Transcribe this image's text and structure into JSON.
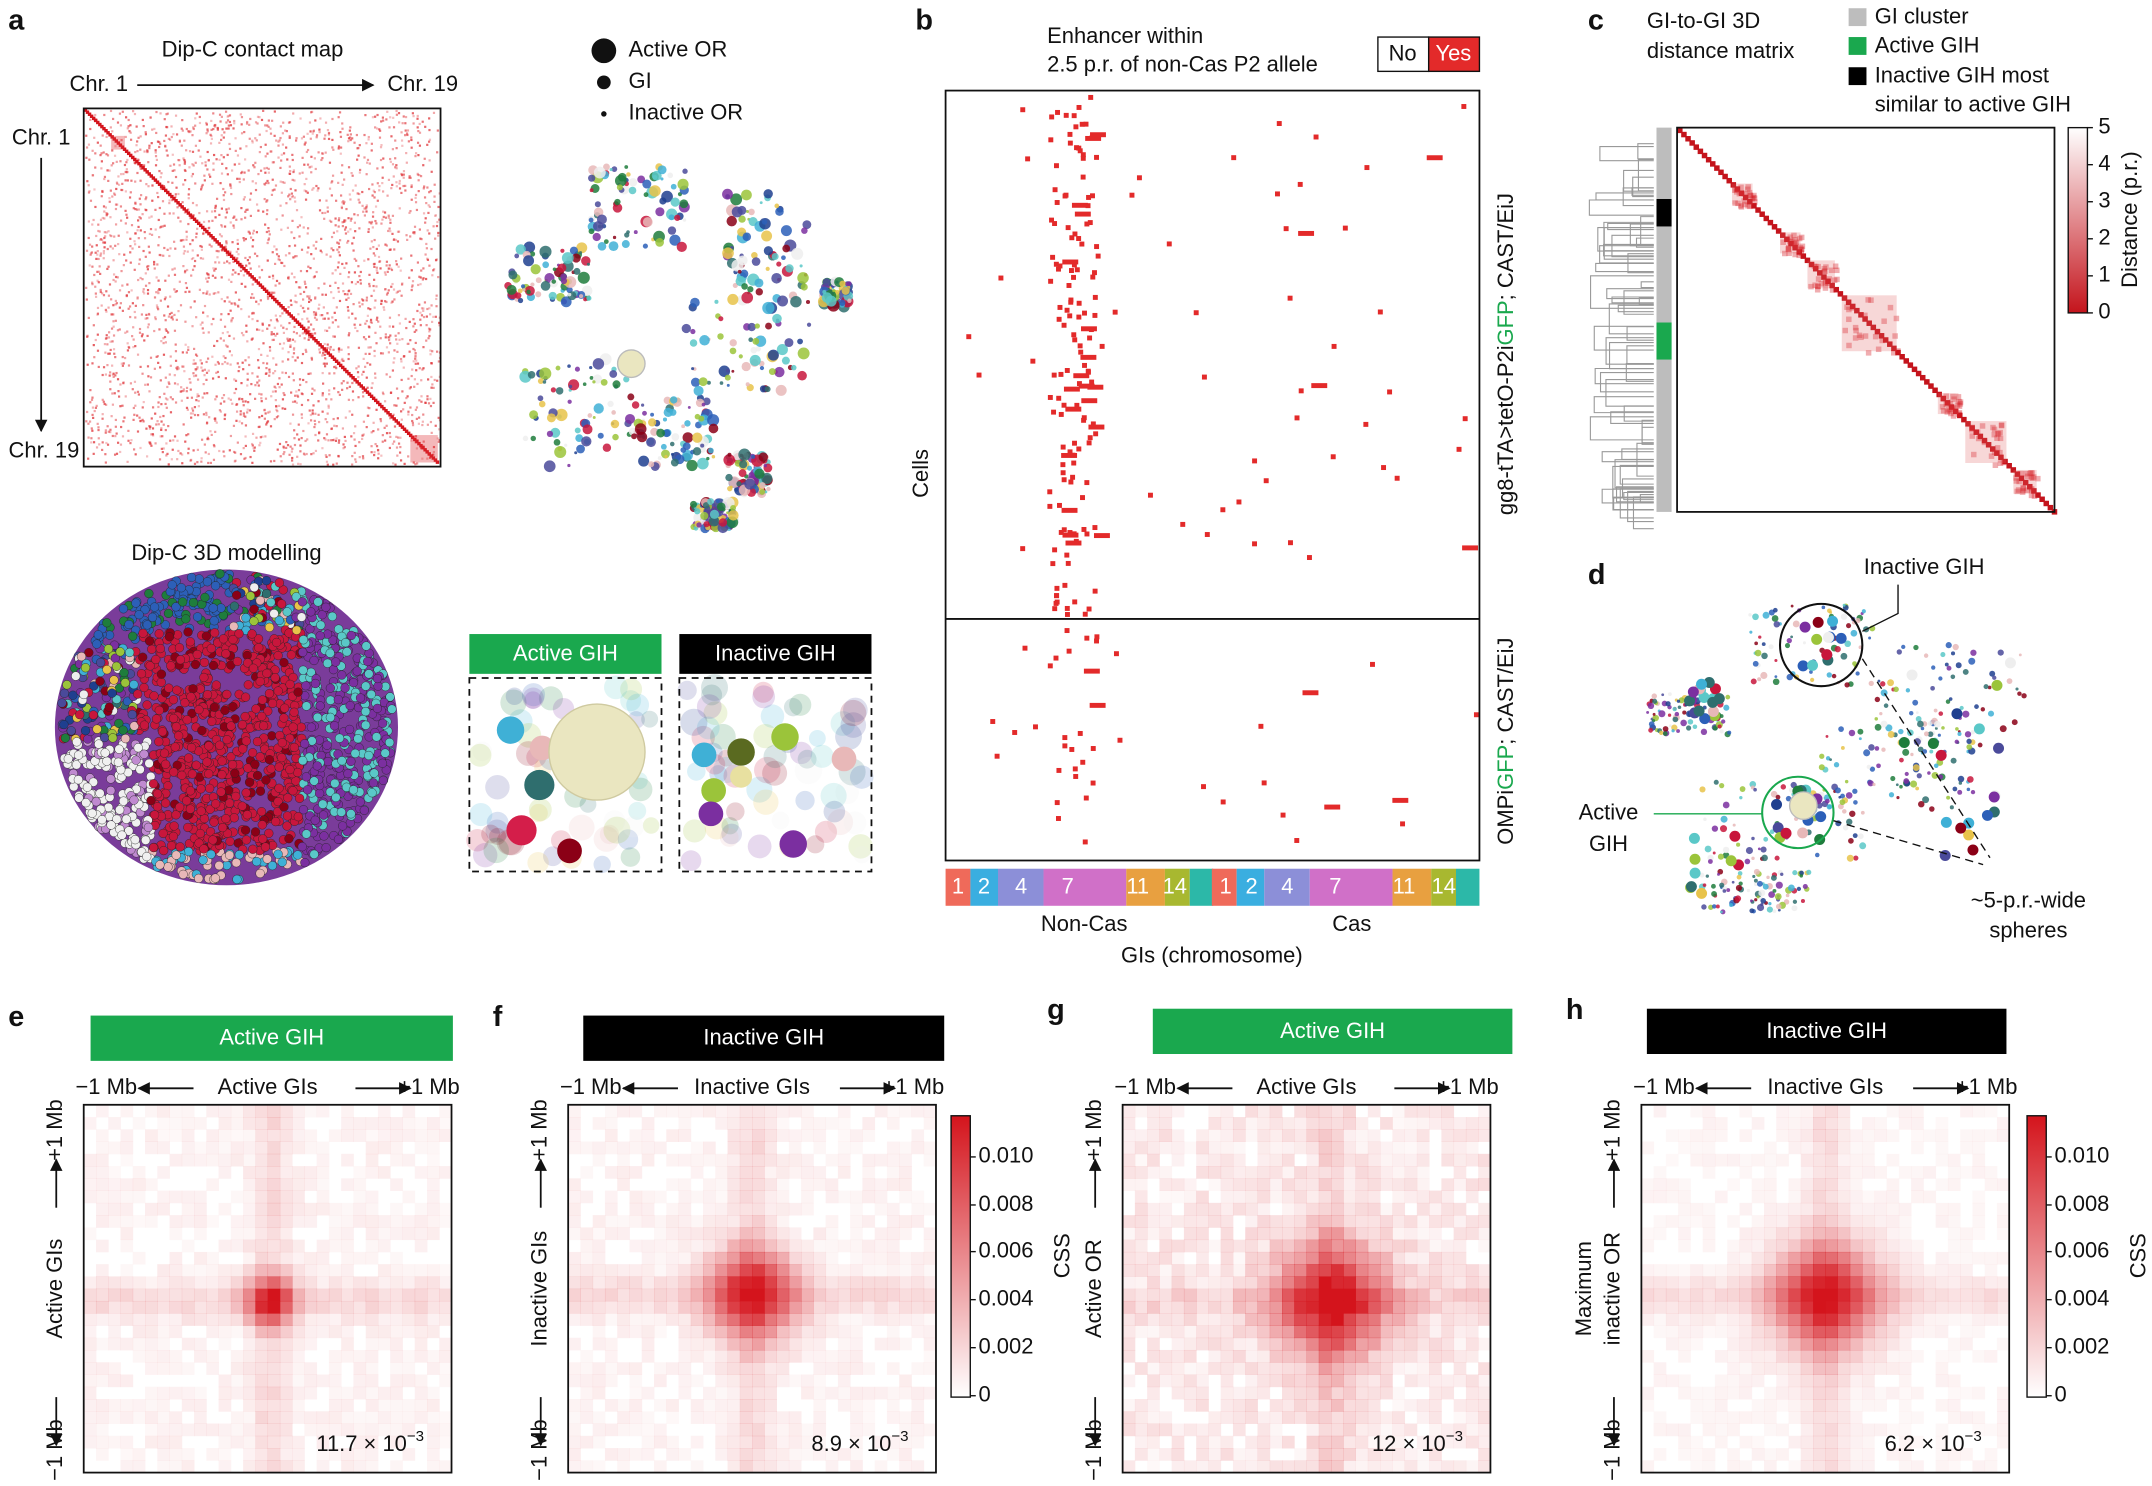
{
  "panel_a": {
    "letter": "a",
    "contact_title": "Dip-C contact map",
    "chr_top": [
      "Chr. 1",
      "Chr. 19"
    ],
    "chr_left": [
      "Chr. 1",
      "Chr. 19"
    ],
    "legend": [
      "Active OR",
      "GI",
      "Inactive OR"
    ],
    "model_title": "Dip-C 3D modelling",
    "zoom_labels": [
      "Active GIH",
      "Inactive GIH"
    ]
  },
  "panel_b": {
    "letter": "b",
    "legend_title": [
      "Enhancer within",
      "2.5 p.r. of non-Cas P2 allele"
    ],
    "legend": [
      "No",
      "Yes"
    ],
    "y_label": "Cells",
    "groups": [
      [
        "gg8-tTA>tetO-P2i",
        "GFP",
        "; CAST/EiJ"
      ],
      [
        "OMPi",
        "GFP",
        "; CAST/EiJ"
      ]
    ],
    "chromosomes": [
      "1",
      "2",
      "4",
      "7",
      "11",
      "14"
    ],
    "alleles": [
      "Non-Cas",
      "Cas"
    ],
    "x_label": "GIs (chromosome)"
  },
  "panel_c": {
    "letter": "c",
    "title": [
      "GI-to-GI 3D",
      "distance matrix"
    ],
    "legend": [
      "GI cluster",
      "Active GIH",
      "Inactive GIH most",
      "similar to active GIH"
    ],
    "colorbar_ticks": [
      "5",
      "4",
      "3",
      "2",
      "1",
      "0"
    ],
    "colorbar_label": "Distance (p.r.)"
  },
  "panel_d": {
    "letter": "d",
    "inactive_label": "Inactive GIH",
    "active_label": [
      "Active",
      "GIH"
    ],
    "sphere_label": [
      "~5-p.r.-wide",
      "spheres"
    ]
  },
  "heatmaps": [
    {
      "letter": "e",
      "banner": "Active GIH",
      "banner_color": "#1aa84e",
      "top": [
        "−1 Mb",
        "Active GIs",
        "+1 Mb"
      ],
      "left": [
        "−1 Mb",
        "Active GIs",
        "+1 Mb"
      ],
      "note": [
        "11.7 × 10",
        "−3"
      ]
    },
    {
      "letter": "f",
      "banner": "Inactive GIH",
      "banner_color": "#000000",
      "top": [
        "−1 Mb",
        "Inactive GIs",
        "+1 Mb"
      ],
      "left": [
        "−1 Mb",
        "Inactive GIs",
        "+1 Mb"
      ],
      "note": [
        "8.9 × 10",
        "−3"
      ]
    },
    {
      "letter": "g",
      "banner": "Active GIH",
      "banner_color": "#1aa84e",
      "top": [
        "−1 Mb",
        "Active GIs",
        "+1 Mb"
      ],
      "left": [
        "−1 Mb",
        "Active OR",
        "+1 Mb"
      ],
      "note": [
        "12 × 10",
        "−3"
      ]
    },
    {
      "letter": "h",
      "banner": "Inactive GIH",
      "banner_color": "#000000",
      "top": [
        "−1 Mb",
        "Inactive GIs",
        "+1 Mb"
      ],
      "left": [
        "−1 Mb",
        "inactive OR",
        "+1 Mb"
      ],
      "left_extra": "Maximum",
      "note": [
        "6.2 × 10",
        "−3"
      ]
    }
  ],
  "css_colorbar": {
    "ticks": [
      "0.010",
      "0.008",
      "0.006",
      "0.004",
      "0.002",
      "0"
    ],
    "label": "CSS"
  }
}
